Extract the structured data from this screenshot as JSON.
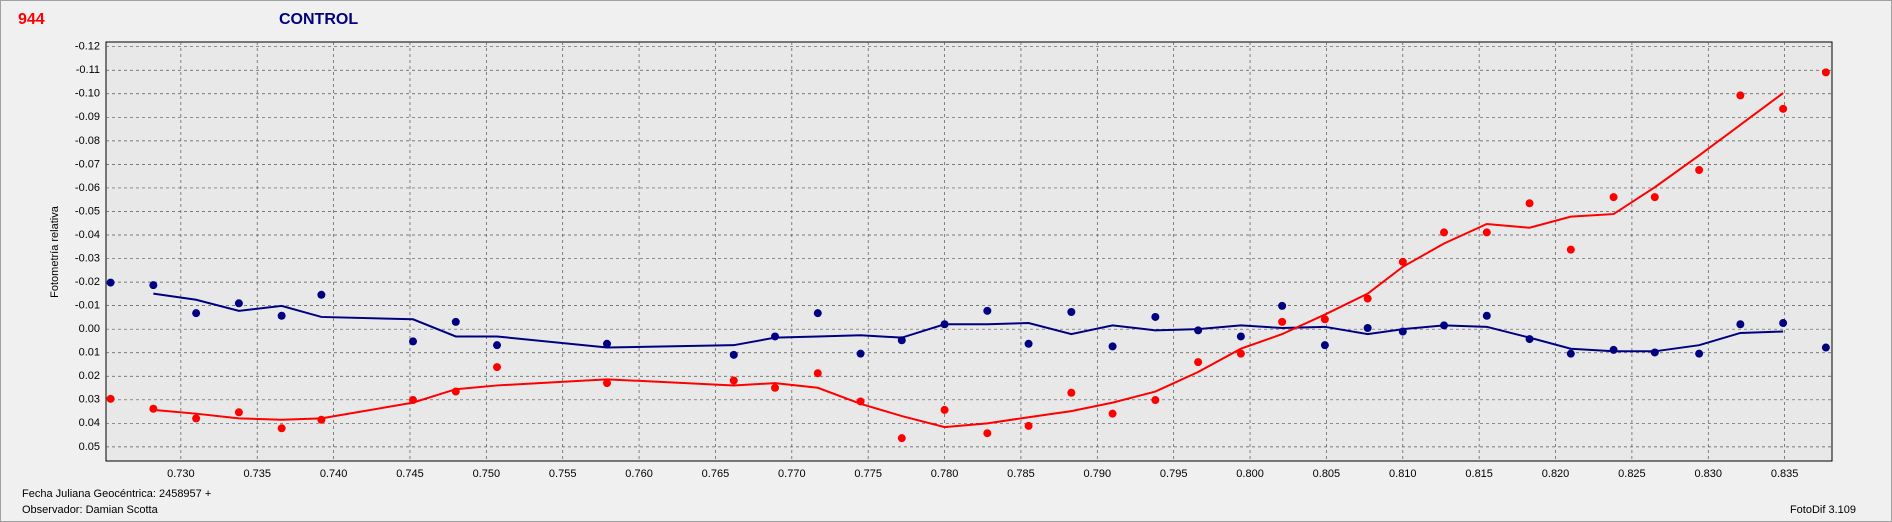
{
  "chart_data": {
    "type": "scatter",
    "label": "944",
    "title": "CONTROL",
    "ylabel": "Fotometría relativa",
    "footer_left": [
      "Fecha Juliana Geocéntrica: 2458957 +",
      "Observador: Damian Scotta"
    ],
    "footer_right": "FotoDif 3.109",
    "xlim": [
      0.7251,
      0.8381
    ],
    "ylim": [
      -0.122,
      0.056
    ],
    "y_inverted": true,
    "grid": true,
    "xticks": [
      {
        "value": 0.73,
        "label": "0.730"
      },
      0.735,
      {
        "value": 0.74,
        "label": "0.740"
      },
      0.745,
      {
        "value": 0.75,
        "label": "0.750"
      },
      0.755,
      {
        "value": 0.76,
        "label": "0.760"
      },
      0.765,
      {
        "value": 0.77,
        "label": "0.770"
      },
      0.775,
      {
        "value": 0.78,
        "label": "0.780"
      },
      0.785,
      {
        "value": 0.79,
        "label": "0.790"
      },
      0.795,
      {
        "value": 0.8,
        "label": "0.800"
      },
      0.805,
      {
        "value": 0.81,
        "label": "0.810"
      },
      0.815,
      {
        "value": 0.82,
        "label": "0.820"
      },
      0.825,
      {
        "value": 0.83,
        "label": "0.830"
      },
      0.835
    ],
    "yticks": [
      -0.12,
      -0.11,
      {
        "value": -0.1,
        "label": "-0.10"
      },
      -0.09,
      -0.08,
      -0.07,
      -0.06,
      -0.05,
      -0.04,
      -0.03,
      -0.02,
      -0.01,
      {
        "value": 0,
        "label": "0.00"
      },
      0.01,
      0.02,
      0.03,
      0.04,
      0.05
    ],
    "series": [
      {
        "style": "points",
        "color": "#000080",
        "x": [
          0.7254,
          0.7282,
          0.731,
          0.7338,
          0.7366,
          0.7392,
          0.7452,
          0.748,
          0.7507,
          0.7579,
          0.7662,
          0.7689,
          0.7717,
          0.7745,
          0.7772,
          0.78,
          0.7828,
          0.7855,
          0.7883,
          0.791,
          0.7938,
          0.7966,
          0.7994,
          0.8021,
          0.8049,
          0.8077,
          0.81,
          0.8127,
          0.8155,
          0.8183,
          0.821,
          0.8238,
          0.8265,
          0.8294,
          0.8321,
          0.8349,
          0.8377
        ],
        "values": [
          -0.0198,
          -0.0187,
          -0.0068,
          -0.011,
          -0.0057,
          -0.0146,
          0.0052,
          -0.0031,
          0.0068,
          0.0062,
          0.0109,
          0.0031,
          -0.0068,
          0.0104,
          0.0047,
          -0.0021,
          -0.0078,
          0.0062,
          -0.0073,
          0.0073,
          -0.0052,
          0.0005,
          0.0031,
          -0.0099,
          0.0068,
          -0.0005,
          0.001,
          -0.0016,
          -0.0057,
          0.0042,
          0.0104,
          0.0088,
          0.0099,
          0.0104,
          -0.0021,
          -0.0026,
          0.0078
        ]
      },
      {
        "style": "points",
        "color": "#ff0000",
        "x": [
          0.7254,
          0.7282,
          0.731,
          0.7338,
          0.7366,
          0.7392,
          0.7452,
          0.748,
          0.7507,
          0.7579,
          0.7662,
          0.7689,
          0.7717,
          0.7745,
          0.7772,
          0.78,
          0.7828,
          0.7855,
          0.7883,
          0.791,
          0.7938,
          0.7966,
          0.7994,
          0.8021,
          0.8049,
          0.8077,
          0.81,
          0.8127,
          0.8155,
          0.8183,
          0.821,
          0.8238,
          0.8265,
          0.8294,
          0.8321,
          0.8349,
          0.8377
        ],
        "values": [
          0.0296,
          0.0338,
          0.0379,
          0.0353,
          0.0421,
          0.0385,
          0.0301,
          0.0265,
          0.0161,
          0.0229,
          0.0218,
          0.0249,
          0.0187,
          0.0307,
          0.0463,
          0.0343,
          0.0442,
          0.0411,
          0.027,
          0.0359,
          0.0301,
          0.014,
          0.0104,
          -0.0031,
          -0.0042,
          -0.013,
          -0.0286,
          -0.0411,
          -0.0411,
          -0.0535,
          -0.0338,
          -0.0561,
          -0.0561,
          -0.0676,
          -0.0993,
          -0.0936,
          -0.1091
        ]
      },
      {
        "style": "line",
        "color": "#000080",
        "x": [
          0.7282,
          0.731,
          0.7338,
          0.7366,
          0.7392,
          0.7452,
          0.748,
          0.7507,
          0.7579,
          0.7662,
          0.7689,
          0.7717,
          0.7745,
          0.7772,
          0.78,
          0.7828,
          0.7855,
          0.7883,
          0.791,
          0.7938,
          0.7966,
          0.7994,
          0.8021,
          0.8049,
          0.8077,
          0.81,
          0.8127,
          0.8155,
          0.8183,
          0.821,
          0.8238,
          0.8265,
          0.8294,
          0.8321,
          0.8349
        ],
        "values": [
          -0.0151,
          -0.0125,
          -0.0078,
          -0.0099,
          -0.0052,
          -0.0042,
          0.0031,
          0.0031,
          0.0078,
          0.0068,
          0.0036,
          0.0031,
          0.0026,
          0.0036,
          -0.0021,
          -0.0021,
          -0.0026,
          0.0021,
          -0.0016,
          0.0005,
          0,
          -0.0016,
          -0.0005,
          -0.001,
          0.0021,
          0,
          -0.0016,
          -0.001,
          0.0036,
          0.0083,
          0.0094,
          0.0094,
          0.0068,
          0.0016,
          0.001
        ]
      },
      {
        "style": "line",
        "color": "#ff0000",
        "x": [
          0.7282,
          0.731,
          0.7338,
          0.7366,
          0.7392,
          0.7452,
          0.748,
          0.7507,
          0.7579,
          0.7662,
          0.7689,
          0.7717,
          0.7745,
          0.7772,
          0.78,
          0.7828,
          0.7855,
          0.7883,
          0.791,
          0.7938,
          0.7966,
          0.7994,
          0.8021,
          0.8049,
          0.8077,
          0.81,
          0.8127,
          0.8155,
          0.8183,
          0.821,
          0.8238,
          0.8265,
          0.8294,
          0.8321,
          0.8349
        ],
        "values": [
          0.0343,
          0.0359,
          0.0379,
          0.0385,
          0.0379,
          0.0312,
          0.0255,
          0.0239,
          0.0213,
          0.0239,
          0.0229,
          0.0249,
          0.0317,
          0.0369,
          0.0416,
          0.04,
          0.0374,
          0.0348,
          0.0312,
          0.0265,
          0.0182,
          0.0083,
          0.0021,
          -0.0062,
          -0.0151,
          -0.0265,
          -0.0364,
          -0.0447,
          -0.0431,
          -0.0478,
          -0.0489,
          -0.0603,
          -0.0738,
          -0.0868,
          -0.1003
        ]
      }
    ]
  }
}
